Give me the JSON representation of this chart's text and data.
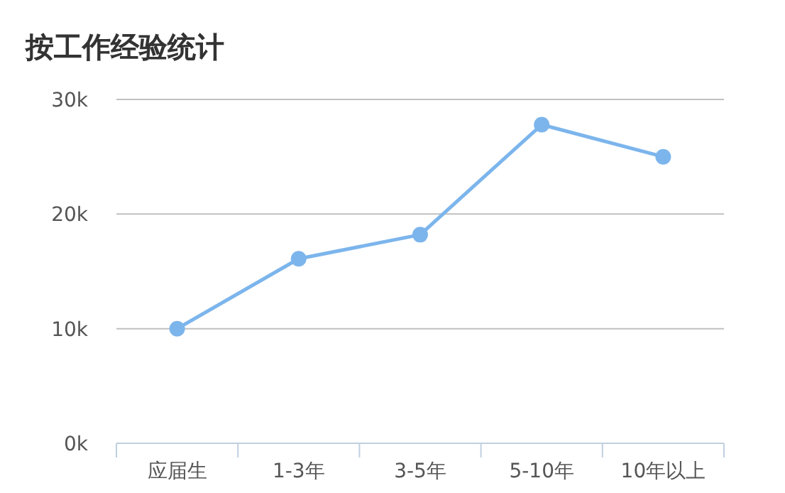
{
  "chart_data": {
    "type": "line",
    "title": "按工作经验统计",
    "categories": [
      "应届生",
      "1-3年",
      "3-5年",
      "5-10年",
      "10年以上"
    ],
    "series": [
      {
        "color": "#7cb5ec",
        "values": [
          10000,
          16100,
          18200,
          27800,
          25000
        ]
      }
    ],
    "ylim": [
      0,
      30000
    ],
    "yticks": [
      {
        "value": 0,
        "label": "0k"
      },
      {
        "value": 10000,
        "label": "10k"
      },
      {
        "value": 20000,
        "label": "20k"
      },
      {
        "value": 30000,
        "label": "30k"
      }
    ],
    "grid": "y",
    "marker": "circle",
    "line_style": "solid"
  }
}
